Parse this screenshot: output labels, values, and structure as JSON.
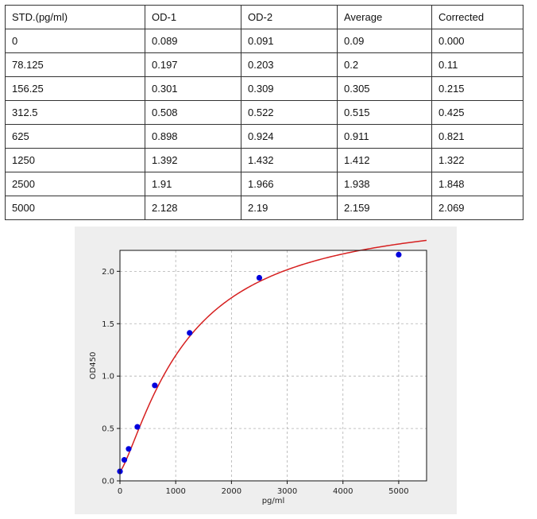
{
  "table": {
    "headers": [
      "STD.(pg/ml)",
      "OD-1",
      "OD-2",
      "Average",
      "Corrected"
    ],
    "rows": [
      [
        "0",
        "0.089",
        "0.091",
        "0.09",
        "0.000"
      ],
      [
        "78.125",
        "0.197",
        "0.203",
        "0.2",
        "0.11"
      ],
      [
        "156.25",
        "0.301",
        "0.309",
        "0.305",
        "0.215"
      ],
      [
        "312.5",
        "0.508",
        "0.522",
        "0.515",
        "0.425"
      ],
      [
        "625",
        "0.898",
        "0.924",
        "0.911",
        "0.821"
      ],
      [
        "1250",
        "1.392",
        "1.432",
        "1.412",
        "1.322"
      ],
      [
        "2500",
        "1.91",
        "1.966",
        "1.938",
        "1.848"
      ],
      [
        "5000",
        "2.128",
        "2.19",
        "2.159",
        "2.069"
      ]
    ]
  },
  "chart_data": {
    "type": "scatter",
    "title": "",
    "xlabel": "pg/ml",
    "ylabel": "OD450",
    "xlim": [
      0,
      5500
    ],
    "ylim": [
      0.0,
      2.2
    ],
    "xticks": [
      0,
      1000,
      2000,
      3000,
      4000,
      5000
    ],
    "yticks": [
      0.0,
      0.5,
      1.0,
      1.5,
      2.0
    ],
    "xtick_labels": [
      "0",
      "1000",
      "2000",
      "3000",
      "4000",
      "5000"
    ],
    "ytick_labels": [
      "0.0",
      "0.5",
      "1.0",
      "1.5",
      "2.0"
    ],
    "grid": true,
    "series": [
      {
        "x": [
          0,
          78.125,
          156.25,
          312.5,
          625,
          1250,
          2500,
          5000
        ],
        "y": [
          0.09,
          0.2,
          0.305,
          0.515,
          0.911,
          1.412,
          1.938,
          2.159
        ],
        "color": "#0000dd"
      }
    ],
    "fit_curve": {
      "color": "#d62020"
    }
  }
}
